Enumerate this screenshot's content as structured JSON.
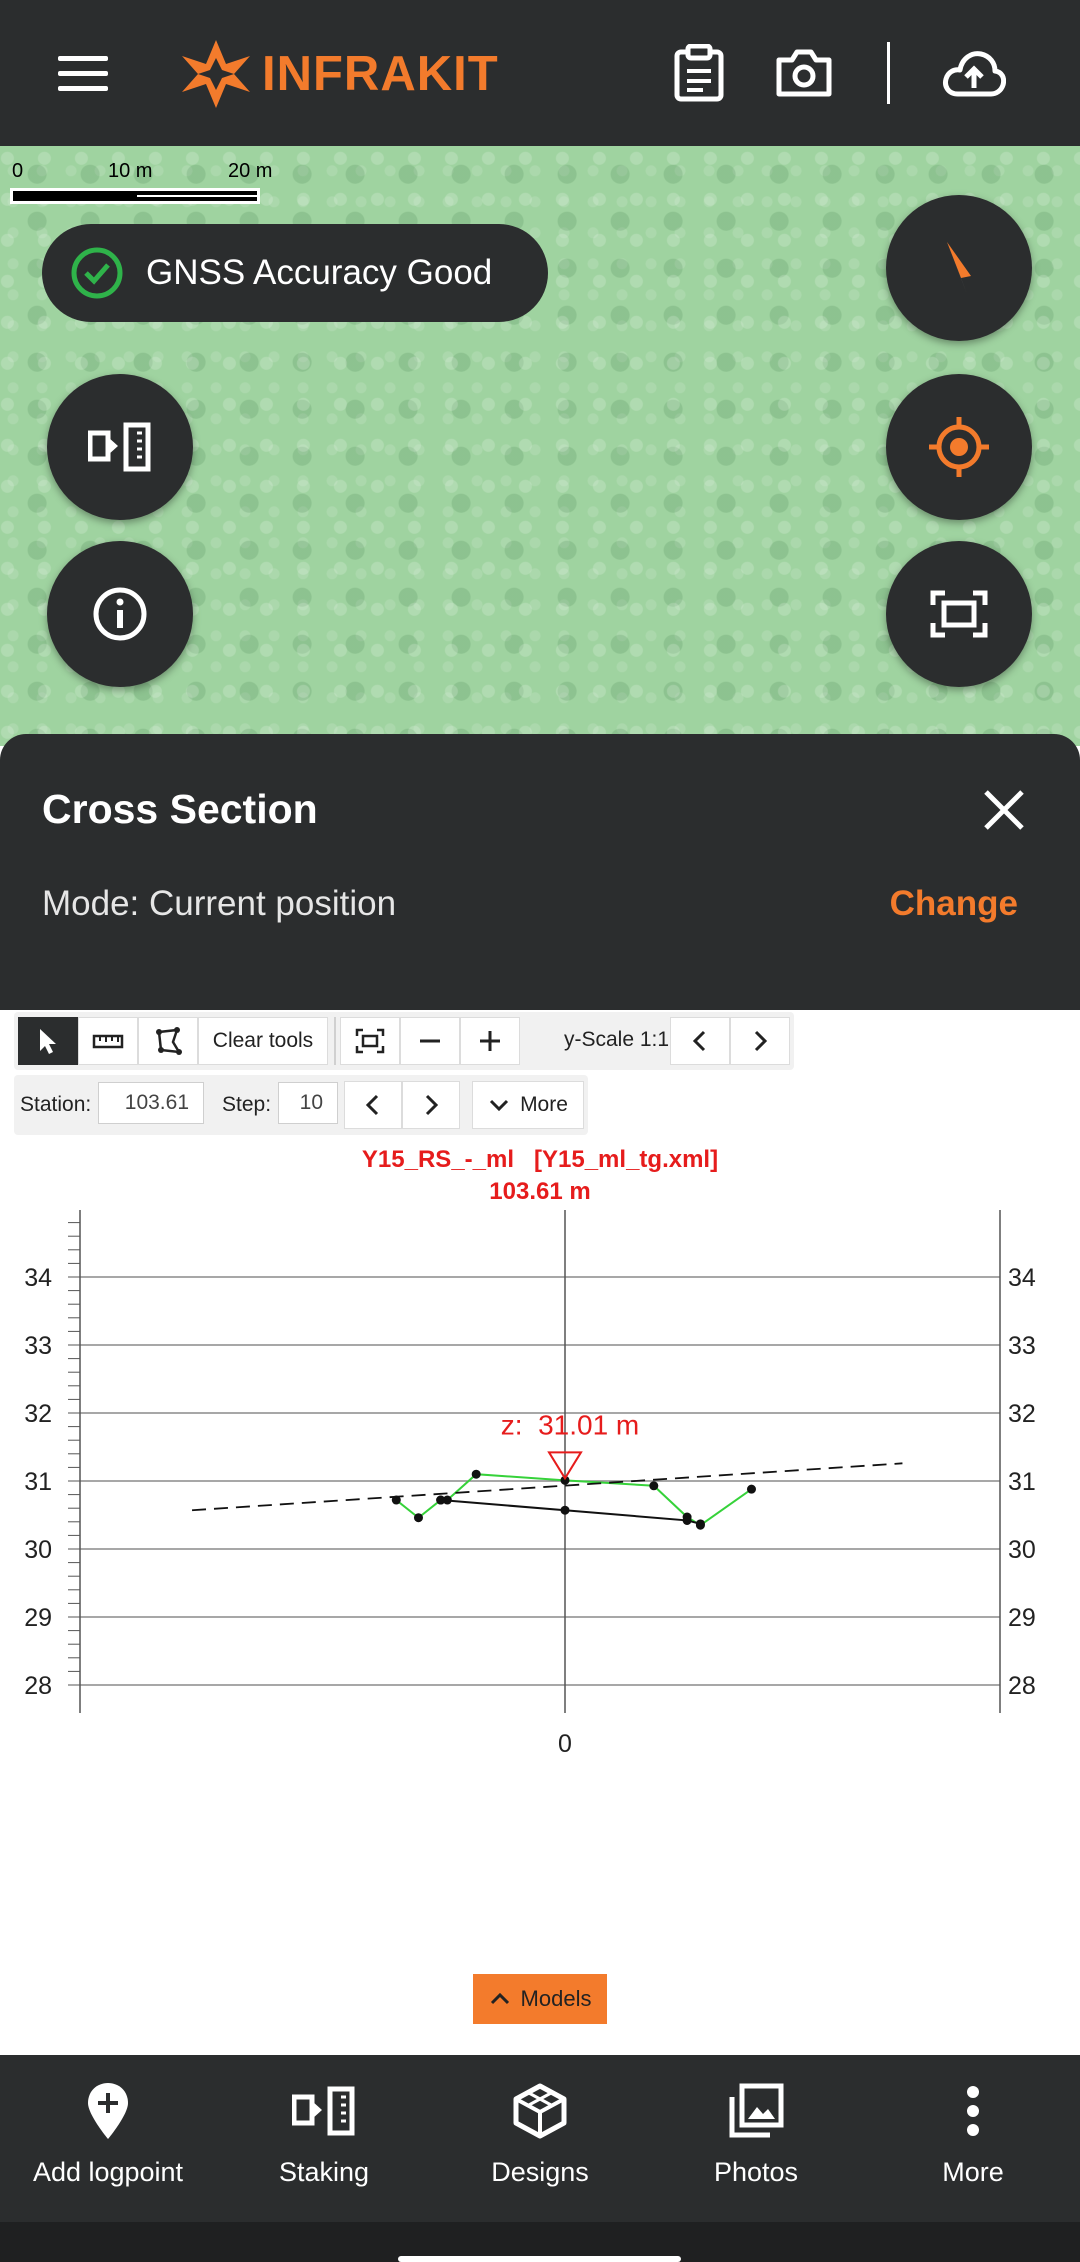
{
  "app": {
    "brand": "INFRAKIT",
    "icons": [
      "menu-icon",
      "clipboard-icon",
      "camera-icon",
      "cloud-upload-icon"
    ]
  },
  "map": {
    "scale_labels": [
      "0",
      "10 m",
      "20 m"
    ],
    "gnss_status": "GNSS Accuracy Good",
    "buttons": [
      "staking-mode-icon",
      "info-icon",
      "compass-icon",
      "locate-icon",
      "fit-view-icon"
    ]
  },
  "panel": {
    "title": "Cross Section",
    "mode": "Mode: Current position",
    "change_label": "Change"
  },
  "toolbar": {
    "clear_tools": "Clear tools",
    "y_scale": "y-Scale 1:1",
    "station_label": "Station:",
    "station_value": "103.61",
    "step_label": "Step:",
    "step_value": "10",
    "more_label": "More"
  },
  "chart_data": {
    "type": "line",
    "title": "Y15_RS_-_ml   [Y15_ml_tg.xml]",
    "subtitle": "103.61 m",
    "marker_label": "z:  31.01 m",
    "ylim": [
      28,
      34
    ],
    "y_ticks": [
      "34",
      "33",
      "32",
      "31",
      "30",
      "29",
      "28"
    ],
    "x_ticks": [
      "0"
    ],
    "grid": true,
    "series": [
      {
        "color": "#36d23a",
        "x": [
          -7.6,
          -6.6,
          -5.6,
          -5.3,
          -4.0,
          0,
          4.0,
          5.5,
          6.1,
          8.4
        ],
        "y": [
          30.72,
          30.46,
          30.72,
          30.72,
          31.1,
          31.01,
          30.93,
          30.47,
          30.35,
          30.88
        ]
      },
      {
        "color": "#111111",
        "x": [
          -5.6,
          0,
          5.5,
          6.1
        ],
        "y": [
          30.72,
          30.57,
          30.42,
          30.37
        ]
      },
      {
        "color": "#111111",
        "style": "dashed",
        "x": [
          -16.8,
          15.2
        ],
        "y": [
          30.57,
          31.26
        ]
      }
    ]
  },
  "models_button": "Models",
  "bottom_nav": {
    "items": [
      {
        "label": "Add logpoint",
        "icon": "add-logpoint-icon"
      },
      {
        "label": "Staking",
        "icon": "staking-icon"
      },
      {
        "label": "Designs",
        "icon": "designs-icon"
      },
      {
        "label": "Photos",
        "icon": "photos-icon"
      },
      {
        "label": "More",
        "icon": "more-vert-icon"
      }
    ]
  },
  "colors": {
    "accent": "#f37b2c",
    "dark": "#2b2d2e",
    "chart_red": "#e61c1c",
    "gnss_green": "#2fb34a"
  }
}
